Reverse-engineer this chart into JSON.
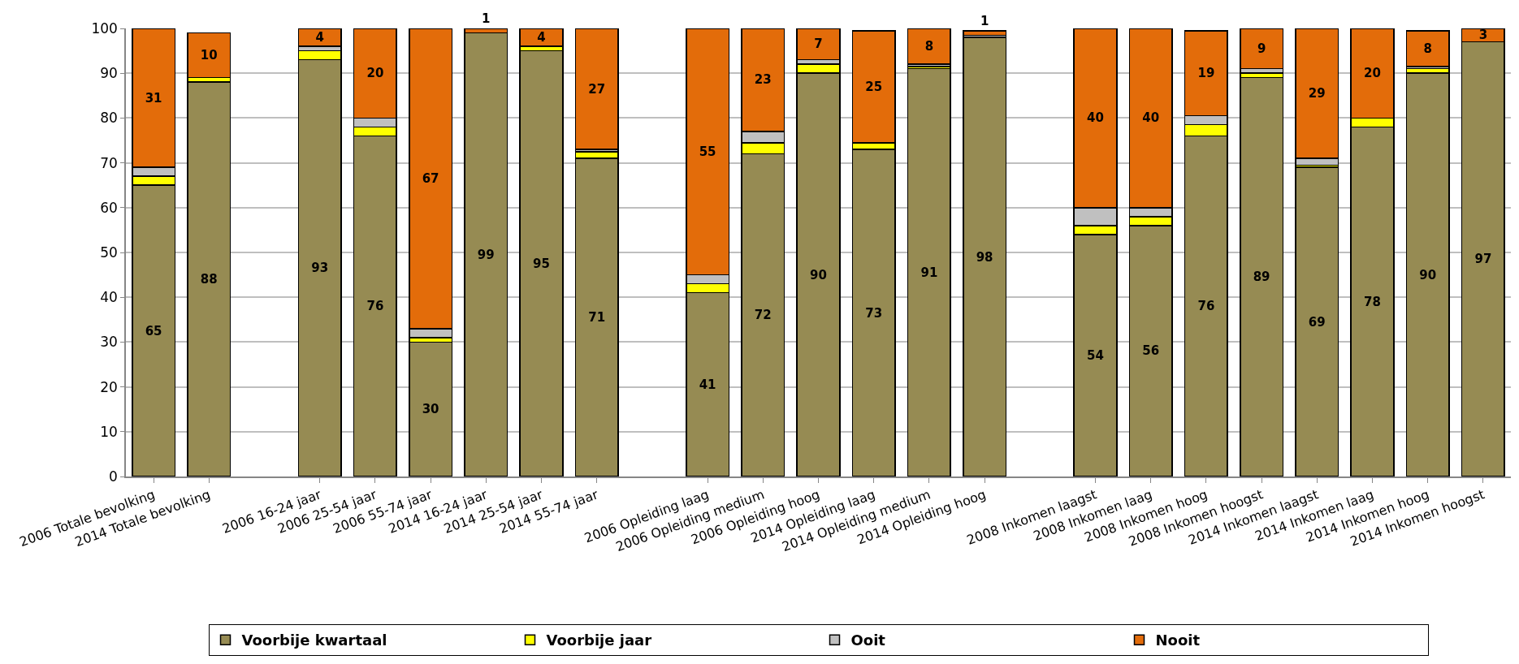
{
  "chart_data": {
    "type": "bar",
    "stacked": true,
    "categories": [
      "2006 Totale bevolking",
      "2014 Totale bevolking",
      null,
      "2006 16-24 jaar",
      "2006 25-54 jaar",
      "2006 55-74 jaar",
      "2014 16-24 jaar",
      "2014 25-54 jaar",
      "2014 55-74 jaar",
      null,
      "2006 Opleiding laag",
      "2006 Opleiding medium",
      "2006 Opleiding hoog",
      "2014 Opleiding laag",
      "2014 Opleiding medium",
      "2014 Opleiding hoog",
      null,
      "2008 Inkomen laagst",
      "2008 Inkomen laag",
      "2008 Inkomen hoog",
      "2008 Inkomen hoogst",
      "2014 Inkomen laagst",
      "2014 Inkomen laag",
      "2014 Inkomen hoog",
      "2014 Inkomen hoogst"
    ],
    "series": [
      {
        "name": "Voorbije kwartaal",
        "color": "#968b53",
        "values": [
          65,
          88,
          null,
          93,
          76,
          30,
          99,
          95,
          71,
          null,
          41,
          72,
          90,
          73,
          91,
          98,
          null,
          54,
          56,
          76,
          89,
          69,
          78,
          90,
          97
        ],
        "value_labels": [
          "65",
          "88",
          null,
          "93",
          "76",
          "30",
          "99",
          "95",
          "71",
          null,
          "41",
          "72",
          "90",
          "73",
          "91",
          "98",
          null,
          "54",
          "56",
          "76",
          "89",
          "69",
          "78",
          "90",
          "97"
        ]
      },
      {
        "name": "Voorbije jaar",
        "color": "#ffff00",
        "values": [
          2,
          1,
          null,
          2,
          2,
          1,
          0,
          1,
          1.5,
          null,
          2,
          2.5,
          2,
          1.5,
          0.5,
          null,
          null,
          2,
          2,
          2.5,
          1,
          0.5,
          2,
          1,
          0
        ]
      },
      {
        "name": "Ooit",
        "color": "#c0c0c0",
        "values": [
          2,
          null,
          null,
          1,
          2,
          2,
          0,
          0,
          0.5,
          null,
          2,
          2.5,
          1,
          null,
          0.5,
          0.5,
          null,
          4,
          2,
          2,
          1,
          1.5,
          0,
          0.5,
          0
        ]
      },
      {
        "name": "Nooit",
        "color": "#e36c0a",
        "values": [
          31,
          10,
          null,
          4,
          20,
          67,
          1,
          4,
          27,
          null,
          55,
          23,
          7,
          25,
          8,
          1,
          null,
          40,
          40,
          19,
          9,
          29,
          20,
          8,
          3
        ],
        "value_labels": [
          "31",
          "10",
          null,
          "4",
          "20",
          "67",
          "1",
          "4",
          "27",
          null,
          "55",
          "23",
          "7",
          "25",
          "8",
          "1",
          null,
          "40",
          "40",
          "19",
          "9",
          "29",
          "20",
          "8",
          "3"
        ]
      }
    ],
    "ylim": [
      0,
      100
    ],
    "yticks": [
      0,
      10,
      20,
      30,
      40,
      50,
      60,
      70,
      80,
      90,
      100
    ],
    "grid": "y",
    "legend": "bottom"
  }
}
